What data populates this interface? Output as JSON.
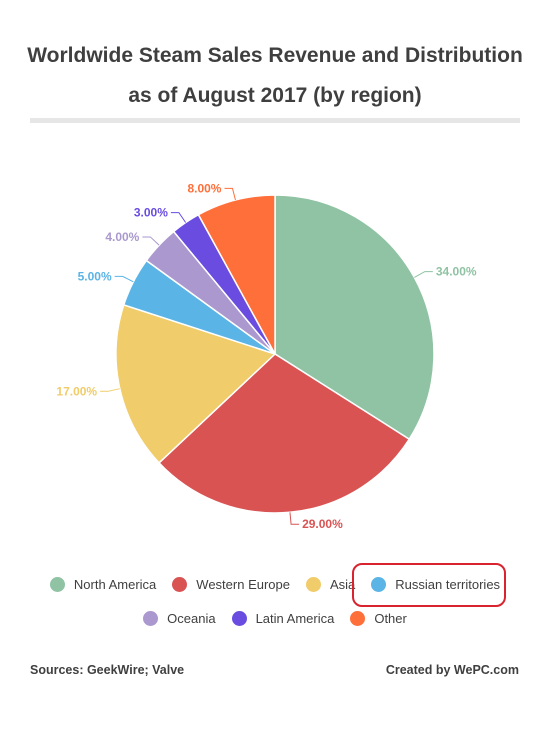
{
  "chart_data": {
    "type": "pie",
    "title_lines": [
      "Worldwide Steam Sales Revenue and Distribution",
      "as of August 2017 (by region)"
    ],
    "slices": [
      {
        "name": "North America",
        "value": 34.0,
        "label": "34.00%",
        "color": "#8fc3a3"
      },
      {
        "name": "Western Europe",
        "value": 29.0,
        "label": "29.00%",
        "color": "#d95353"
      },
      {
        "name": "Asia",
        "value": 17.0,
        "label": "17.00%",
        "color": "#f0cc6a"
      },
      {
        "name": "Russian territories",
        "value": 5.0,
        "label": "5.00%",
        "color": "#5bb4e6"
      },
      {
        "name": "Oceania",
        "value": 4.0,
        "label": "4.00%",
        "color": "#aa98cf"
      },
      {
        "name": "Latin America",
        "value": 3.0,
        "label": "3.00%",
        "color": "#6a4de0"
      },
      {
        "name": "Other",
        "value": 8.0,
        "label": "8.00%",
        "color": "#ff6f3a"
      }
    ],
    "legend_placement": "bottom",
    "highlighted_legend_entry": "Russian territories"
  },
  "footer": {
    "sources": "Sources: GeekWire; Valve",
    "credit": "Created by WePC.com"
  }
}
